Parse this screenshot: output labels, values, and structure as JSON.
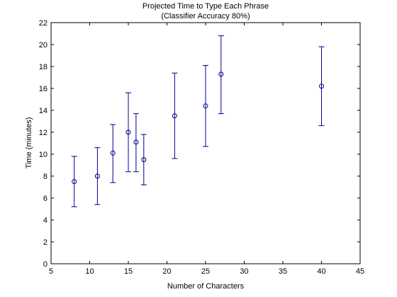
{
  "chart_data": {
    "type": "scatter",
    "title": "Projected Time to Type Each Phrase",
    "subtitle": "(Classifier Accuracy 80%)",
    "xlabel": "Number of Characters",
    "ylabel": "Time (minutes)",
    "xlim": [
      5,
      45
    ],
    "ylim": [
      0,
      22
    ],
    "xticks": [
      5,
      10,
      15,
      20,
      25,
      30,
      35,
      40,
      45
    ],
    "yticks": [
      0,
      2,
      4,
      6,
      8,
      10,
      12,
      14,
      16,
      18,
      20,
      22
    ],
    "grid": false,
    "error_bars": true,
    "marker_color": "#00008f",
    "points": [
      {
        "x": 8,
        "y": 7.5,
        "lower": 5.2,
        "upper": 9.8
      },
      {
        "x": 11,
        "y": 8.0,
        "lower": 5.4,
        "upper": 10.6
      },
      {
        "x": 13,
        "y": 10.1,
        "lower": 7.4,
        "upper": 12.7
      },
      {
        "x": 15,
        "y": 12.0,
        "lower": 8.4,
        "upper": 15.6
      },
      {
        "x": 16,
        "y": 11.1,
        "lower": 8.4,
        "upper": 13.7
      },
      {
        "x": 17,
        "y": 9.5,
        "lower": 7.2,
        "upper": 11.8
      },
      {
        "x": 21,
        "y": 13.5,
        "lower": 9.6,
        "upper": 17.4
      },
      {
        "x": 25,
        "y": 14.4,
        "lower": 10.7,
        "upper": 18.1
      },
      {
        "x": 27,
        "y": 17.3,
        "lower": 13.7,
        "upper": 20.8
      },
      {
        "x": 40,
        "y": 16.2,
        "lower": 12.6,
        "upper": 19.8
      }
    ]
  }
}
